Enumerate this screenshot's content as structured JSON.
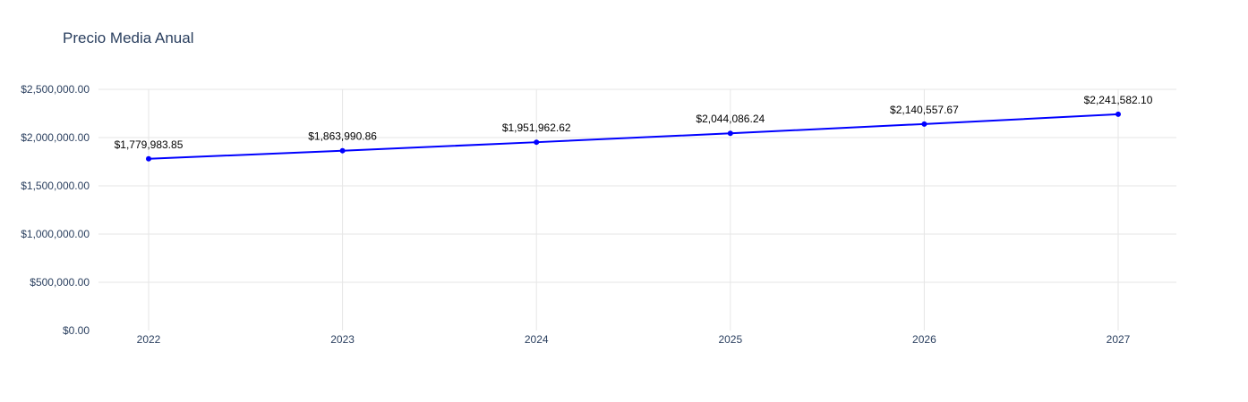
{
  "chart_data": {
    "type": "line",
    "title": "Precio Media Anual",
    "xlabel": "",
    "ylabel": "",
    "x": [
      2022,
      2023,
      2024,
      2025,
      2026,
      2027
    ],
    "series": [
      {
        "values": [
          1779983.85,
          1863990.86,
          1951962.62,
          2044086.24,
          2140557.67,
          2241582.1
        ],
        "labels": [
          "$1,779,983.85",
          "$1,863,990.86",
          "$1,951,962.62",
          "$2,044,086.24",
          "$2,140,557.67",
          "$2,241,582.10"
        ],
        "color": "#0000ff",
        "markers": true
      }
    ],
    "ylim": [
      0,
      2500000
    ],
    "y_ticks": [
      0,
      500000,
      1000000,
      1500000,
      2000000,
      2500000
    ],
    "y_tick_labels": [
      "$0.00",
      "$500,000.00",
      "$1,000,000.00",
      "$1,500,000.00",
      "$2,000,000.00",
      "$2,500,000.00"
    ],
    "x_tick_labels": [
      "2022",
      "2023",
      "2024",
      "2025",
      "2026",
      "2027"
    ],
    "grid": true,
    "legend": false
  },
  "colors": {
    "grid": "#e6e6e6",
    "tick_text": "#2a3f5f",
    "line": "#0000ff"
  }
}
